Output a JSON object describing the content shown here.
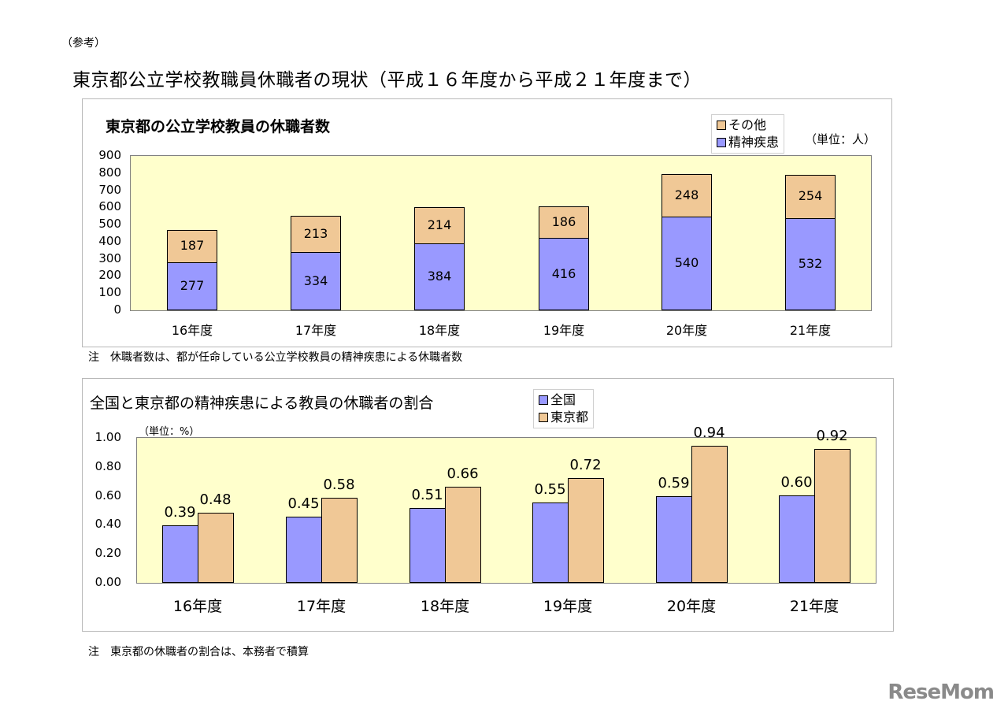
{
  "reference_label": "（参考）",
  "page_title": "東京都公立学校教職員休職者の現状（平成１６年度から平成２１年度まで）",
  "colors": {
    "seishin": "#9999ff",
    "sonota": "#f0c896",
    "zenkoku": "#9999ff",
    "tokyo": "#f0c896",
    "plot_bg": "#ffffcc"
  },
  "chart1": {
    "title": "東京都の公立学校教員の休職者数",
    "unit": "（単位：人）",
    "legend": [
      "その他",
      "精神疾患"
    ],
    "yticks": [
      "900",
      "800",
      "700",
      "600",
      "500",
      "400",
      "300",
      "200",
      "100",
      "0"
    ],
    "note": "注　休職者数は、都が任命している公立学校教員の精神疾患による休職者数"
  },
  "chart2": {
    "title": "全国と東京都の精神疾患による教員の休職者の割合",
    "unit": "（単位：%）",
    "legend": [
      "全国",
      "東京都"
    ],
    "yticks": [
      "1.00",
      "0.80",
      "0.60",
      "0.40",
      "0.20",
      "0.00"
    ],
    "note": "注　東京都の休職者の割合は、本務者で積算"
  },
  "watermark": "ReseMom",
  "chart_data": [
    {
      "type": "bar",
      "stacked": true,
      "title": "東京都の公立学校教員の休職者数",
      "categories": [
        "16年度",
        "17年度",
        "18年度",
        "19年度",
        "20年度",
        "21年度"
      ],
      "series": [
        {
          "name": "精神疾患",
          "color": "#9999ff",
          "values": [
            277,
            334,
            384,
            416,
            540,
            532
          ]
        },
        {
          "name": "その他",
          "color": "#f0c896",
          "values": [
            187,
            213,
            214,
            186,
            248,
            254
          ]
        }
      ],
      "xlabel": "",
      "ylabel": "（単位：人）",
      "ylim": [
        0,
        900
      ],
      "yticks": [
        0,
        100,
        200,
        300,
        400,
        500,
        600,
        700,
        800,
        900
      ],
      "legend_position": "top-right",
      "grid": false
    },
    {
      "type": "bar",
      "stacked": false,
      "title": "全国と東京都の精神疾患による教員の休職者の割合",
      "categories": [
        "16年度",
        "17年度",
        "18年度",
        "19年度",
        "20年度",
        "21年度"
      ],
      "series": [
        {
          "name": "全国",
          "color": "#9999ff",
          "values": [
            0.39,
            0.45,
            0.51,
            0.55,
            0.59,
            0.6
          ]
        },
        {
          "name": "東京都",
          "color": "#f0c896",
          "values": [
            0.48,
            0.58,
            0.66,
            0.72,
            0.94,
            0.92
          ]
        }
      ],
      "xlabel": "",
      "ylabel": "（単位：%）",
      "ylim": [
        0,
        1.0
      ],
      "yticks": [
        0.0,
        0.2,
        0.4,
        0.6,
        0.8,
        1.0
      ],
      "legend_position": "top-center",
      "grid": false
    }
  ]
}
